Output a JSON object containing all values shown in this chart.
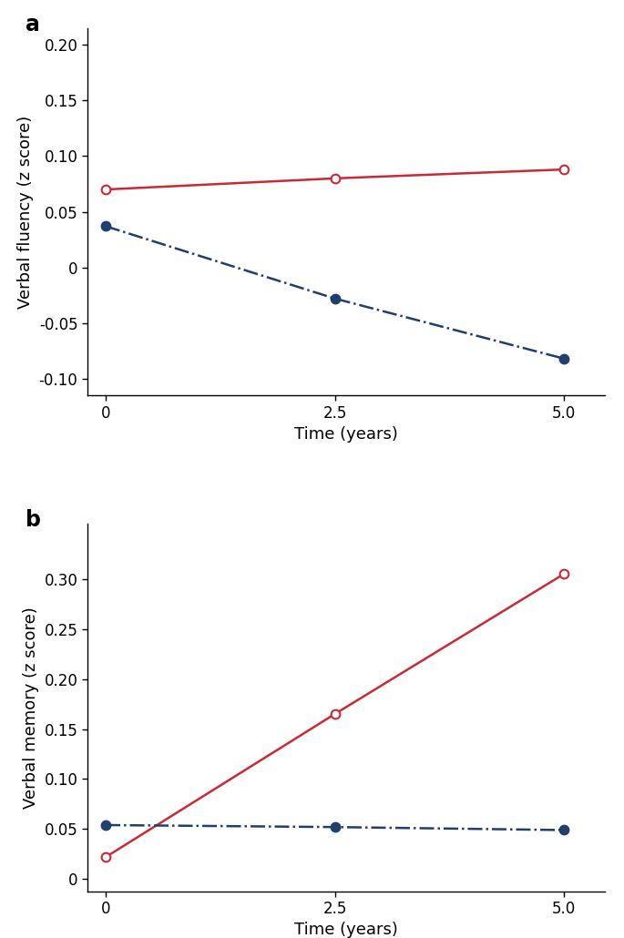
{
  "panel_a": {
    "title": "a",
    "ylabel": "Verbal fluency (z score)",
    "xlabel": "Time (years)",
    "red_x": [
      0,
      2.5,
      5.0
    ],
    "red_y": [
      0.07,
      0.08,
      0.088
    ],
    "blue_x": [
      0,
      2.5,
      5.0
    ],
    "blue_y": [
      0.037,
      -0.028,
      -0.082
    ],
    "ylim": [
      -0.115,
      0.215
    ],
    "yticks": [
      -0.1,
      -0.05,
      0.0,
      0.05,
      0.1,
      0.15,
      0.2
    ],
    "ytick_labels": [
      "-0.10",
      "-0.05",
      "0",
      "0.05",
      "0.10",
      "0.15",
      "0.20"
    ],
    "xticks": [
      0,
      2.5,
      5.0
    ],
    "xtick_labels": [
      "0",
      "2.5",
      "5.0"
    ]
  },
  "panel_b": {
    "title": "b",
    "ylabel": "Verbal memory (z score)",
    "xlabel": "Time (years)",
    "red_x": [
      0,
      2.5,
      5.0
    ],
    "red_y": [
      0.022,
      0.165,
      0.305
    ],
    "blue_x": [
      0,
      2.5,
      5.0
    ],
    "blue_y": [
      0.054,
      0.052,
      0.049
    ],
    "ylim": [
      -0.012,
      0.355
    ],
    "yticks": [
      0.0,
      0.05,
      0.1,
      0.15,
      0.2,
      0.25,
      0.3
    ],
    "ytick_labels": [
      "0",
      "0.05",
      "0.10",
      "0.15",
      "0.20",
      "0.25",
      "0.30"
    ],
    "xticks": [
      0,
      2.5,
      5.0
    ],
    "xtick_labels": [
      "0",
      "2.5",
      "5.0"
    ]
  },
  "red_color": "#CC2936",
  "blue_color": "#1F3F6E",
  "marker_size": 7,
  "linewidth": 1.8,
  "font_size": 13,
  "label_font_size": 13,
  "title_font_size": 17
}
